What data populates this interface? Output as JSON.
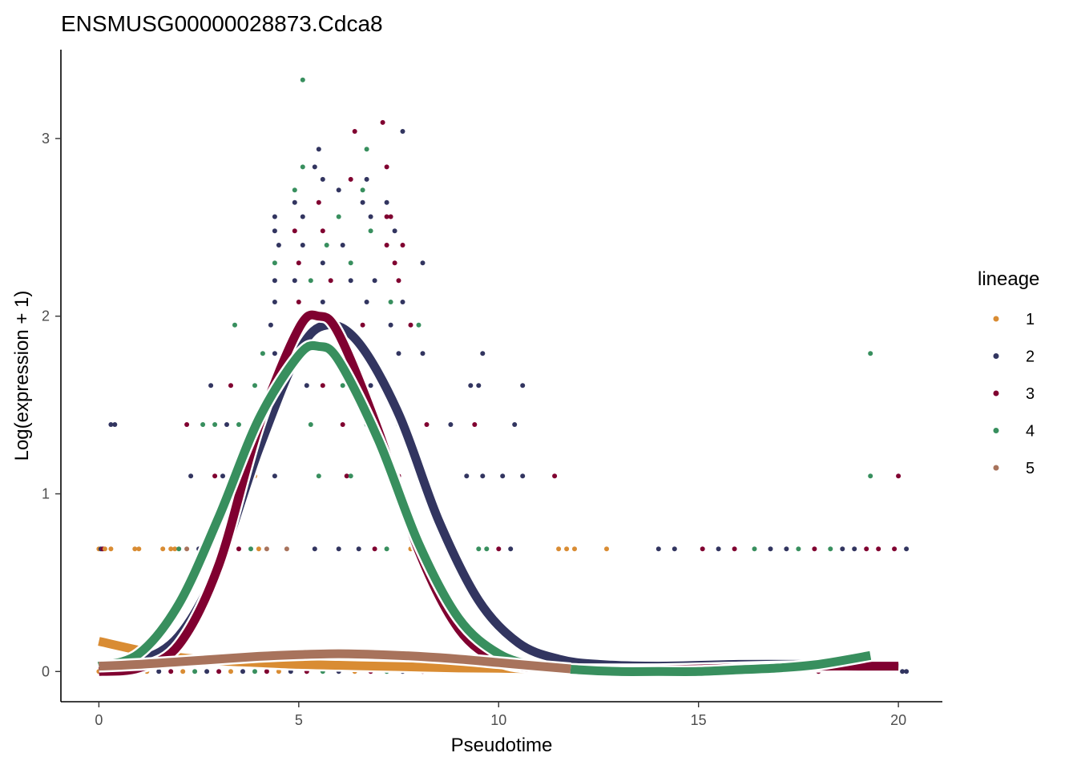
{
  "chart_data": {
    "type": "scatter",
    "title": "ENSMUSG00000028873.Cdca8",
    "xlabel": "Pseudotime",
    "ylabel": "Log(expression + 1)",
    "xlim": [
      -0.95,
      21.1
    ],
    "ylim": [
      -0.17,
      3.5
    ],
    "x_ticks": [
      0,
      5,
      10,
      15,
      20
    ],
    "y_ticks": [
      0,
      1,
      2,
      3
    ],
    "grid": false,
    "legend": {
      "title": "lineage",
      "position": "right",
      "entries": [
        {
          "label": "1",
          "color": "#d98c33"
        },
        {
          "label": "2",
          "color": "#323560"
        },
        {
          "label": "3",
          "color": "#800030"
        },
        {
          "label": "4",
          "color": "#388f5e"
        },
        {
          "label": "5",
          "color": "#a8735c"
        }
      ]
    },
    "points": [
      [
        0.0,
        0.0,
        1
      ],
      [
        0.1,
        0.0,
        2
      ],
      [
        0.3,
        0.0,
        3
      ],
      [
        0.6,
        0.0,
        1
      ],
      [
        0.9,
        0.0,
        4
      ],
      [
        1.2,
        0.0,
        1
      ],
      [
        1.5,
        0.0,
        2
      ],
      [
        1.8,
        0.0,
        3
      ],
      [
        2.1,
        0.0,
        1
      ],
      [
        2.4,
        0.0,
        4
      ],
      [
        2.7,
        0.0,
        2
      ],
      [
        3.0,
        0.0,
        3
      ],
      [
        3.3,
        0.0,
        1
      ],
      [
        3.6,
        0.0,
        2
      ],
      [
        3.9,
        0.0,
        4
      ],
      [
        4.2,
        0.0,
        3
      ],
      [
        4.5,
        0.0,
        1
      ],
      [
        4.8,
        0.0,
        2
      ],
      [
        5.2,
        0.0,
        3
      ],
      [
        5.6,
        0.0,
        4
      ],
      [
        6.0,
        0.0,
        2
      ],
      [
        6.4,
        0.0,
        1
      ],
      [
        6.8,
        0.0,
        3
      ],
      [
        7.2,
        0.0,
        4
      ],
      [
        7.6,
        0.0,
        2
      ],
      [
        8.1,
        0.0,
        3
      ],
      [
        8.6,
        0.0,
        2
      ],
      [
        9.2,
        0.0,
        4
      ],
      [
        10.0,
        0.0,
        3
      ],
      [
        11.5,
        0.0,
        2
      ],
      [
        12.5,
        0.0,
        4
      ],
      [
        14.0,
        0.0,
        3
      ],
      [
        16.0,
        0.0,
        4
      ],
      [
        18.0,
        0.0,
        3
      ],
      [
        20.1,
        0.0,
        2
      ],
      [
        20.2,
        0.0,
        2
      ],
      [
        0.0,
        0.69,
        1
      ],
      [
        0.05,
        0.69,
        2
      ],
      [
        0.1,
        0.69,
        3
      ],
      [
        0.15,
        0.69,
        1
      ],
      [
        0.3,
        0.69,
        1
      ],
      [
        0.9,
        0.69,
        1
      ],
      [
        1.0,
        0.69,
        1
      ],
      [
        1.6,
        0.69,
        1
      ],
      [
        1.8,
        0.69,
        1
      ],
      [
        1.9,
        0.69,
        1
      ],
      [
        2.0,
        0.69,
        4
      ],
      [
        2.2,
        0.69,
        5
      ],
      [
        2.5,
        0.69,
        2
      ],
      [
        3.5,
        0.69,
        3
      ],
      [
        3.8,
        0.69,
        4
      ],
      [
        4.0,
        0.69,
        1
      ],
      [
        4.2,
        0.69,
        5
      ],
      [
        4.7,
        0.69,
        5
      ],
      [
        5.4,
        0.69,
        2
      ],
      [
        6.0,
        0.69,
        2
      ],
      [
        6.5,
        0.69,
        2
      ],
      [
        6.9,
        0.69,
        3
      ],
      [
        7.2,
        0.69,
        4
      ],
      [
        7.8,
        0.69,
        1
      ],
      [
        8.9,
        0.69,
        2
      ],
      [
        9.5,
        0.69,
        4
      ],
      [
        9.7,
        0.69,
        4
      ],
      [
        10.0,
        0.69,
        3
      ],
      [
        10.3,
        0.69,
        2
      ],
      [
        11.5,
        0.69,
        1
      ],
      [
        11.7,
        0.69,
        1
      ],
      [
        11.9,
        0.69,
        1
      ],
      [
        12.7,
        0.69,
        1
      ],
      [
        14.0,
        0.69,
        2
      ],
      [
        14.4,
        0.69,
        2
      ],
      [
        15.1,
        0.69,
        3
      ],
      [
        15.5,
        0.69,
        2
      ],
      [
        15.9,
        0.69,
        3
      ],
      [
        16.4,
        0.69,
        4
      ],
      [
        16.8,
        0.69,
        2
      ],
      [
        17.2,
        0.69,
        2
      ],
      [
        17.5,
        0.69,
        4
      ],
      [
        17.9,
        0.69,
        3
      ],
      [
        18.3,
        0.69,
        4
      ],
      [
        18.6,
        0.69,
        2
      ],
      [
        18.9,
        0.69,
        2
      ],
      [
        19.2,
        0.69,
        3
      ],
      [
        19.5,
        0.69,
        3
      ],
      [
        19.9,
        0.69,
        3
      ],
      [
        20.2,
        0.69,
        2
      ],
      [
        2.3,
        1.1,
        2
      ],
      [
        2.9,
        1.1,
        3
      ],
      [
        3.1,
        1.1,
        2
      ],
      [
        3.9,
        1.1,
        1
      ],
      [
        4.4,
        1.1,
        2
      ],
      [
        5.5,
        1.1,
        4
      ],
      [
        6.2,
        1.1,
        3
      ],
      [
        6.3,
        1.1,
        4
      ],
      [
        7.3,
        1.1,
        4
      ],
      [
        7.5,
        1.1,
        3
      ],
      [
        9.2,
        1.1,
        2
      ],
      [
        9.6,
        1.1,
        2
      ],
      [
        10.1,
        1.1,
        2
      ],
      [
        10.6,
        1.1,
        2
      ],
      [
        11.4,
        1.1,
        3
      ],
      [
        19.3,
        1.1,
        4
      ],
      [
        20.0,
        1.1,
        3
      ],
      [
        0.3,
        1.39,
        2
      ],
      [
        0.4,
        1.39,
        2
      ],
      [
        2.2,
        1.39,
        3
      ],
      [
        2.6,
        1.39,
        4
      ],
      [
        2.9,
        1.39,
        4
      ],
      [
        3.2,
        1.39,
        2
      ],
      [
        3.5,
        1.39,
        4
      ],
      [
        4.3,
        1.39,
        3
      ],
      [
        5.3,
        1.39,
        4
      ],
      [
        6.1,
        1.39,
        3
      ],
      [
        6.7,
        1.39,
        4
      ],
      [
        7.5,
        1.39,
        4
      ],
      [
        8.2,
        1.39,
        3
      ],
      [
        8.8,
        1.39,
        2
      ],
      [
        9.4,
        1.39,
        3
      ],
      [
        10.4,
        1.39,
        2
      ],
      [
        2.8,
        1.61,
        2
      ],
      [
        3.3,
        1.61,
        3
      ],
      [
        3.9,
        1.61,
        4
      ],
      [
        4.5,
        1.61,
        2
      ],
      [
        5.2,
        1.61,
        2
      ],
      [
        5.6,
        1.61,
        3
      ],
      [
        6.1,
        1.61,
        4
      ],
      [
        6.8,
        1.61,
        2
      ],
      [
        7.1,
        1.61,
        2
      ],
      [
        9.3,
        1.61,
        2
      ],
      [
        9.5,
        1.61,
        2
      ],
      [
        10.6,
        1.61,
        2
      ],
      [
        4.1,
        1.79,
        4
      ],
      [
        4.4,
        1.79,
        2
      ],
      [
        5.1,
        1.79,
        3
      ],
      [
        6.8,
        1.79,
        2
      ],
      [
        7.5,
        1.79,
        2
      ],
      [
        8.1,
        1.79,
        2
      ],
      [
        9.6,
        1.79,
        2
      ],
      [
        19.3,
        1.79,
        4
      ],
      [
        3.4,
        1.95,
        4
      ],
      [
        4.3,
        1.95,
        2
      ],
      [
        5.0,
        1.95,
        3
      ],
      [
        5.8,
        1.95,
        2
      ],
      [
        6.6,
        1.95,
        3
      ],
      [
        7.3,
        1.95,
        2
      ],
      [
        7.8,
        1.95,
        3
      ],
      [
        8.0,
        1.95,
        4
      ],
      [
        4.4,
        2.08,
        2
      ],
      [
        5.0,
        2.08,
        3
      ],
      [
        5.6,
        2.08,
        2
      ],
      [
        6.7,
        2.08,
        2
      ],
      [
        7.3,
        2.08,
        4
      ],
      [
        7.6,
        2.08,
        2
      ],
      [
        4.4,
        2.2,
        2
      ],
      [
        4.9,
        2.2,
        2
      ],
      [
        5.3,
        2.2,
        4
      ],
      [
        5.8,
        2.2,
        3
      ],
      [
        6.3,
        2.2,
        2
      ],
      [
        6.9,
        2.2,
        2
      ],
      [
        7.5,
        2.2,
        3
      ],
      [
        4.4,
        2.3,
        4
      ],
      [
        5.0,
        2.3,
        3
      ],
      [
        5.6,
        2.3,
        2
      ],
      [
        6.3,
        2.3,
        4
      ],
      [
        7.4,
        2.3,
        3
      ],
      [
        8.1,
        2.3,
        2
      ],
      [
        4.5,
        2.4,
        2
      ],
      [
        5.1,
        2.4,
        2
      ],
      [
        5.7,
        2.4,
        4
      ],
      [
        6.1,
        2.4,
        2
      ],
      [
        7.2,
        2.4,
        3
      ],
      [
        7.6,
        2.4,
        3
      ],
      [
        4.4,
        2.48,
        2
      ],
      [
        4.9,
        2.48,
        3
      ],
      [
        5.6,
        2.48,
        3
      ],
      [
        6.8,
        2.48,
        4
      ],
      [
        7.4,
        2.48,
        2
      ],
      [
        4.4,
        2.56,
        2
      ],
      [
        5.1,
        2.56,
        2
      ],
      [
        6.0,
        2.56,
        4
      ],
      [
        6.8,
        2.56,
        2
      ],
      [
        7.2,
        2.56,
        3
      ],
      [
        7.3,
        2.56,
        3
      ],
      [
        4.9,
        2.64,
        2
      ],
      [
        5.5,
        2.64,
        3
      ],
      [
        6.6,
        2.64,
        2
      ],
      [
        7.2,
        2.64,
        2
      ],
      [
        4.9,
        2.71,
        4
      ],
      [
        6.0,
        2.71,
        2
      ],
      [
        6.6,
        2.71,
        4
      ],
      [
        5.6,
        2.77,
        2
      ],
      [
        6.3,
        2.77,
        3
      ],
      [
        6.7,
        2.77,
        2
      ],
      [
        5.1,
        2.84,
        4
      ],
      [
        5.4,
        2.84,
        2
      ],
      [
        7.2,
        2.84,
        3
      ],
      [
        5.5,
        2.94,
        2
      ],
      [
        6.7,
        2.94,
        4
      ],
      [
        6.4,
        3.04,
        3
      ],
      [
        7.6,
        3.04,
        2
      ],
      [
        7.1,
        3.09,
        3
      ],
      [
        5.1,
        3.33,
        4
      ]
    ],
    "fitted_curves": [
      {
        "lineage": "1",
        "x": [
          0,
          1,
          2,
          3,
          4,
          5,
          6,
          7,
          8,
          9,
          10,
          11,
          11.8
        ],
        "y": [
          0.17,
          0.12,
          0.08,
          0.06,
          0.05,
          0.04,
          0.035,
          0.03,
          0.025,
          0.02,
          0.018,
          0.015,
          0.012
        ]
      },
      {
        "lineage": "2",
        "x": [
          0,
          1,
          2,
          3,
          4,
          5,
          5.7,
          6.5,
          7.5,
          8.5,
          9.5,
          10.5,
          11.5,
          12.5,
          14,
          16,
          17.5,
          19,
          20
        ],
        "y": [
          0.03,
          0.06,
          0.2,
          0.6,
          1.25,
          1.8,
          1.95,
          1.85,
          1.45,
          0.85,
          0.4,
          0.16,
          0.07,
          0.04,
          0.03,
          0.04,
          0.04,
          0.03,
          0.02
        ]
      },
      {
        "lineage": "3",
        "x": [
          0,
          1,
          2,
          3,
          4,
          5,
          5.5,
          6,
          7,
          8,
          9,
          10,
          11,
          12,
          14,
          16,
          18,
          19,
          20
        ],
        "y": [
          0.0,
          0.02,
          0.15,
          0.6,
          1.38,
          1.93,
          2.0,
          1.9,
          1.35,
          0.68,
          0.24,
          0.06,
          0.02,
          0.01,
          0.01,
          0.02,
          0.03,
          0.03,
          0.03
        ]
      },
      {
        "lineage": "4",
        "x": [
          0,
          1,
          2,
          3,
          4,
          5,
          5.5,
          6,
          7,
          8,
          9,
          10,
          11,
          12,
          13,
          14,
          15,
          16,
          17,
          18,
          19.3
        ],
        "y": [
          0.03,
          0.1,
          0.38,
          0.87,
          1.42,
          1.78,
          1.83,
          1.75,
          1.3,
          0.72,
          0.3,
          0.1,
          0.03,
          0.01,
          0.0,
          0.0,
          0.0,
          0.01,
          0.02,
          0.04,
          0.09
        ]
      },
      {
        "lineage": "5",
        "x": [
          0,
          1,
          2,
          3,
          4,
          5,
          6,
          7,
          8,
          9,
          10,
          11,
          11.8
        ],
        "y": [
          0.03,
          0.04,
          0.055,
          0.07,
          0.085,
          0.095,
          0.1,
          0.095,
          0.085,
          0.07,
          0.05,
          0.03,
          0.015
        ]
      }
    ]
  }
}
